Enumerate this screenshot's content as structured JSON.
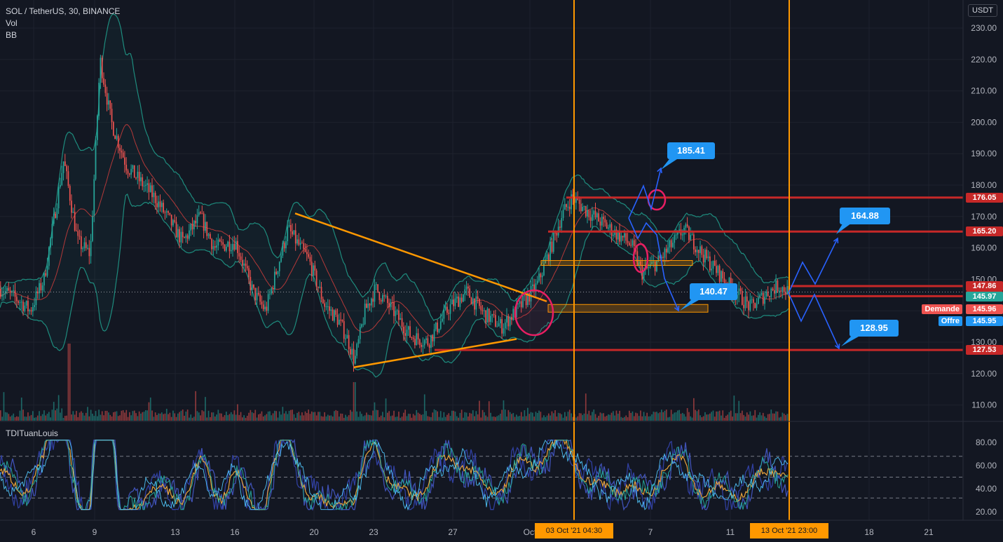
{
  "header": {
    "symbol_line": "SOL / TetherUS, 30, BINANCE",
    "indicator_1": "Vol",
    "indicator_2": "BB",
    "currency": "USDT"
  },
  "oscillator": {
    "title": "TDITuanLouis"
  },
  "chart_data": {
    "type": "candlestick",
    "price_axis": {
      "ticks": [
        "230.00",
        "220.00",
        "210.00",
        "200.00",
        "190.00",
        "180.00",
        "170.00",
        "160.00",
        "150.00",
        "140.00",
        "130.00",
        "120.00",
        "110.00"
      ],
      "range": [
        104,
        234
      ]
    },
    "oscillator_axis": {
      "ticks": [
        "80.00",
        "60.00",
        "40.00",
        "20.00"
      ],
      "range": [
        14,
        90
      ],
      "bands": [
        68,
        50,
        32
      ]
    },
    "time_axis": {
      "ticks": [
        "6",
        "9",
        "13",
        "16",
        "20",
        "23",
        "27",
        "Oct",
        "7",
        "11",
        "18",
        "21"
      ]
    },
    "price_path": [
      [
        "0",
        147
      ],
      [
        "5",
        144
      ],
      [
        "6",
        141
      ],
      [
        "7",
        149
      ],
      [
        "8",
        190
      ],
      [
        "8",
        160
      ],
      [
        "9",
        150
      ],
      [
        "9.4",
        220
      ],
      [
        "10",
        200
      ],
      [
        "11",
        186
      ],
      [
        "12",
        178
      ],
      [
        "13",
        162
      ],
      [
        "13.5",
        172
      ],
      [
        "14",
        158
      ],
      [
        "15",
        162
      ],
      [
        "16",
        145
      ],
      [
        "17",
        140
      ],
      [
        "18",
        166
      ],
      [
        "19",
        156
      ],
      [
        "20",
        142
      ],
      [
        "21",
        138
      ],
      [
        "21.5",
        130
      ],
      [
        "22",
        124
      ],
      [
        "22.5",
        138
      ],
      [
        "23",
        146
      ],
      [
        "24",
        142
      ],
      [
        "25",
        134
      ],
      [
        "26",
        130
      ],
      [
        "26.5",
        140
      ],
      [
        "27",
        146
      ],
      [
        "28",
        140
      ],
      [
        "29",
        136
      ],
      [
        "30",
        142
      ],
      [
        "Oct 1",
        148
      ],
      [
        "Oct 2",
        162
      ],
      [
        "Oct 2.5",
        173
      ],
      [
        "Oct 3",
        176
      ],
      [
        "Oct 4",
        170
      ],
      [
        "Oct 5",
        166
      ],
      [
        "Oct 6",
        155
      ],
      [
        "Oct 7",
        156
      ],
      [
        "Oct 8",
        166
      ],
      [
        "Oct 9",
        157
      ],
      [
        "Oct 10",
        148
      ],
      [
        "Oct 11",
        142
      ],
      [
        "Oct 12",
        145
      ],
      [
        "Oct 13",
        146
      ]
    ],
    "horizontal_levels": [
      {
        "label": "176.05",
        "value": 176.05,
        "color": "#c62828"
      },
      {
        "label": "165.20",
        "value": 165.2,
        "color": "#c62828"
      },
      {
        "label": "147.86",
        "value": 147.86,
        "color": "#c62828"
      },
      {
        "label": "144.64",
        "value": 144.64,
        "color": "#c62828"
      },
      {
        "label": "127.53",
        "value": 127.53,
        "color": "#c62828"
      }
    ],
    "price_labels": [
      {
        "label": "145.97",
        "value": 145.97,
        "color": "#26a69a"
      },
      {
        "label": "145.96",
        "value": 145.96,
        "color": "#ef5350",
        "tag": "Demande"
      },
      {
        "label": "145.95",
        "value": 145.95,
        "color": "#2196f3",
        "tag": "Offre"
      }
    ],
    "targets": [
      {
        "label": "185.41",
        "value": 185.41
      },
      {
        "label": "164.88",
        "value": 164.88
      },
      {
        "label": "140.47",
        "value": 140.47
      },
      {
        "label": "128.95",
        "value": 128.95
      }
    ],
    "vertical_markers": [
      {
        "date": "03 Oct '21",
        "time": "04:30"
      },
      {
        "date": "13 Oct '21",
        "time": "23:00"
      }
    ],
    "trendlines": [
      {
        "name": "triangle-upper",
        "from": [
          "Sep 19",
          171
        ],
        "to": [
          "Oct 2",
          143
        ]
      },
      {
        "name": "triangle-lower",
        "from": [
          "Sep 22",
          122
        ],
        "to": [
          "Sep 30",
          131
        ]
      }
    ],
    "zones": [
      {
        "from": "Oct 2",
        "to": "Oct 7",
        "top": 156,
        "bottom": 154.5
      },
      {
        "from": "Oct 1",
        "to": "Oct 10",
        "top": 142,
        "bottom": 139.5
      }
    ],
    "colors": {
      "background": "#131722",
      "up": "#26a69a",
      "down": "#ef5350",
      "bb": "#1e8c7e",
      "level": "#c62828",
      "triangle": "#ff9800",
      "projection": "#2962ff",
      "circle": "#e91e63",
      "marker": "#ff9800"
    }
  }
}
